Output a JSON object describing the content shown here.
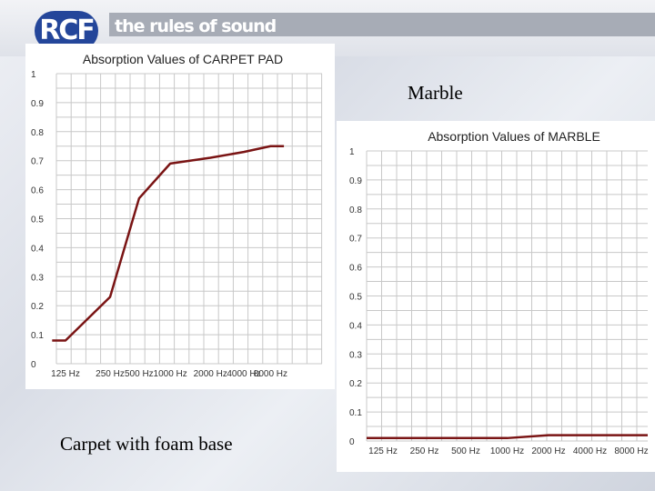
{
  "header": {
    "logo_text": "RCF",
    "tagline": "the rules of sound",
    "brand_color": "#24469a"
  },
  "captions": {
    "marble": "Marble",
    "carpet": "Carpet with foam base"
  },
  "chart_data": [
    {
      "type": "line",
      "title": "Absorption Values of CARPET PAD",
      "categories": [
        "125 Hz",
        "250 Hz",
        "500 Hz",
        "1000 Hz",
        "2000 Hz",
        "4000 Hz",
        "8000 Hz"
      ],
      "x_positions": [
        0,
        1,
        1.65,
        2.35,
        3.25,
        4,
        4.6
      ],
      "series": [
        {
          "values": [
            0.08,
            0.23,
            0.57,
            0.69,
            0.71,
            0.73,
            0.75
          ]
        }
      ],
      "x_points": [
        -0.3,
        0,
        1,
        1.65,
        2.35,
        3.25,
        4,
        4.6,
        4.9
      ],
      "y_points": [
        0.08,
        0.08,
        0.23,
        0.57,
        0.69,
        0.71,
        0.73,
        0.75,
        0.75
      ],
      "yticks": [
        "0",
        "0.1",
        "0.2",
        "0.3",
        "0.4",
        "0.5",
        "0.6",
        "0.7",
        "0.8",
        "0.9",
        "1"
      ],
      "ylim": [
        0,
        1
      ],
      "grid": true,
      "line_color": "#7a1414"
    },
    {
      "type": "line",
      "title": "Absorption Values of MARBLE",
      "categories": [
        "125 Hz",
        "250 Hz",
        "500 Hz",
        "1000 Hz",
        "2000 Hz",
        "4000 Hz",
        "8000 Hz"
      ],
      "series": [
        {
          "values": [
            0.01,
            0.01,
            0.01,
            0.01,
            0.02,
            0.02,
            0.02
          ]
        }
      ],
      "yticks": [
        "0",
        "0.1",
        "0.2",
        "0.3",
        "0.4",
        "0.5",
        "0.6",
        "0.7",
        "0.8",
        "0.9",
        "1"
      ],
      "ylim": [
        0,
        1
      ],
      "grid": true,
      "line_color": "#7a1414"
    }
  ]
}
